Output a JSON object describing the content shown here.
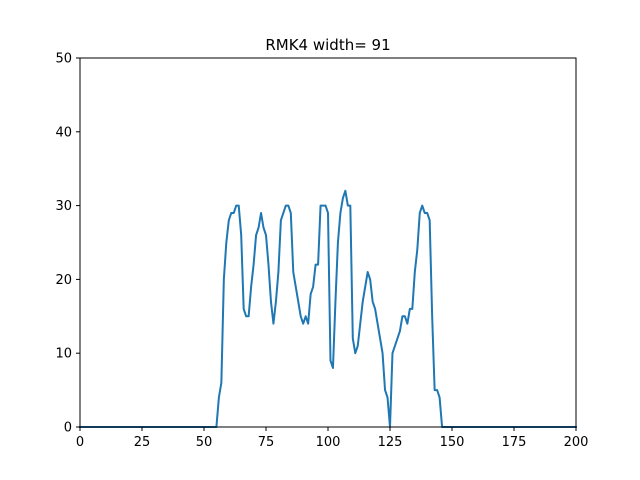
{
  "chart_data": {
    "type": "line",
    "title": "RMK4 width= 91",
    "xlabel": "",
    "ylabel": "",
    "xlim": [
      0,
      200
    ],
    "ylim": [
      0,
      50
    ],
    "xticks": [
      0,
      25,
      50,
      75,
      100,
      125,
      150,
      175,
      200
    ],
    "yticks": [
      0,
      10,
      20,
      30,
      40,
      50
    ],
    "grid": false,
    "line_color": "#1f77b4",
    "series": [
      {
        "x": [
          0,
          1,
          2,
          3,
          4,
          5,
          6,
          7,
          8,
          9,
          10,
          11,
          12,
          13,
          14,
          15,
          16,
          17,
          18,
          19,
          20,
          21,
          22,
          23,
          24,
          25,
          26,
          27,
          28,
          29,
          30,
          31,
          32,
          33,
          34,
          35,
          36,
          37,
          38,
          39,
          40,
          41,
          42,
          43,
          44,
          45,
          46,
          47,
          48,
          49,
          50,
          51,
          52,
          53,
          54,
          55,
          56,
          57,
          58,
          59,
          60,
          61,
          62,
          63,
          64,
          65,
          66,
          67,
          68,
          69,
          70,
          71,
          72,
          73,
          74,
          75,
          76,
          77,
          78,
          79,
          80,
          81,
          82,
          83,
          84,
          85,
          86,
          87,
          88,
          89,
          90,
          91,
          92,
          93,
          94,
          95,
          96,
          97,
          98,
          99,
          100,
          101,
          102,
          103,
          104,
          105,
          106,
          107,
          108,
          109,
          110,
          111,
          112,
          113,
          114,
          115,
          116,
          117,
          118,
          119,
          120,
          121,
          122,
          123,
          124,
          125,
          126,
          127,
          128,
          129,
          130,
          131,
          132,
          133,
          134,
          135,
          136,
          137,
          138,
          139,
          140,
          141,
          142,
          143,
          144,
          145,
          146,
          147,
          148,
          149,
          150,
          151,
          152,
          153,
          154,
          155,
          156,
          157,
          158,
          159,
          160,
          161,
          162,
          163,
          164,
          165,
          166,
          167,
          168,
          169,
          170,
          171,
          172,
          173,
          174,
          175,
          176,
          177,
          178,
          179,
          180,
          181,
          182,
          183,
          184,
          185,
          186,
          187,
          188,
          189,
          190,
          191,
          192,
          193,
          194,
          195,
          196,
          197,
          198,
          199,
          200
        ],
        "values": [
          0,
          0,
          0,
          0,
          0,
          0,
          0,
          0,
          0,
          0,
          0,
          0,
          0,
          0,
          0,
          0,
          0,
          0,
          0,
          0,
          0,
          0,
          0,
          0,
          0,
          0,
          0,
          0,
          0,
          0,
          0,
          0,
          0,
          0,
          0,
          0,
          0,
          0,
          0,
          0,
          0,
          0,
          0,
          0,
          0,
          0,
          0,
          0,
          0,
          0,
          0,
          0,
          0,
          0,
          0,
          0,
          4,
          6,
          20,
          25,
          28,
          29,
          29,
          30,
          30,
          26,
          16,
          15,
          15,
          19,
          22,
          26,
          27,
          29,
          27,
          26,
          22,
          17,
          14,
          17,
          21,
          28,
          29,
          30,
          30,
          29,
          21,
          19,
          17,
          15,
          14,
          15,
          14,
          18,
          19,
          22,
          22,
          30,
          30,
          30,
          29,
          9,
          8,
          17,
          25,
          29,
          31,
          32,
          30,
          30,
          12,
          10,
          11,
          14,
          17,
          19,
          21,
          20,
          17,
          16,
          14,
          12,
          10,
          5,
          4,
          0,
          10,
          11,
          12,
          13,
          15,
          15,
          14,
          16,
          16,
          21,
          24,
          29,
          30,
          29,
          29,
          28,
          15,
          5,
          5,
          4,
          0,
          0,
          0,
          0,
          0,
          0,
          0,
          0,
          0,
          0,
          0,
          0,
          0,
          0,
          0,
          0,
          0,
          0,
          0,
          0,
          0,
          0,
          0,
          0,
          0,
          0,
          0,
          0,
          0,
          0,
          0,
          0,
          0,
          0,
          0,
          0,
          0,
          0,
          0,
          0,
          0,
          0,
          0,
          0,
          0,
          0,
          0,
          0,
          0,
          0,
          0,
          0,
          0,
          0,
          0
        ]
      }
    ]
  }
}
